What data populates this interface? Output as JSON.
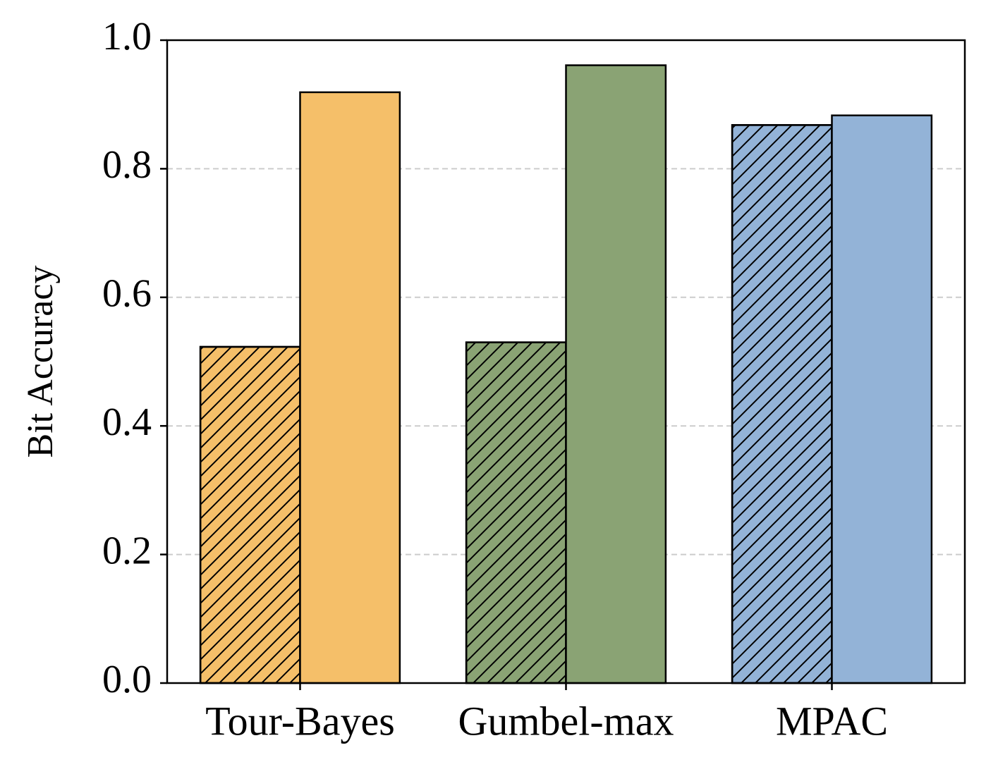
{
  "chart_data": {
    "type": "grouped_bar",
    "y_label": "Bit Accuracy",
    "categories": [
      "Tour-Bayes",
      "Gumbel-max",
      "MPAC"
    ],
    "colors": [
      "#f5bf69",
      "#8aa374",
      "#93b3d7"
    ],
    "series": [
      {
        "hatch": true,
        "values": [
          0.523,
          0.53,
          0.868
        ]
      },
      {
        "hatch": false,
        "values": [
          0.919,
          0.961,
          0.883
        ]
      }
    ],
    "ylim": [
      0,
      1
    ],
    "yticks": [
      {
        "value": 0,
        "label": "0.0"
      },
      {
        "value": 0.2,
        "label": "0.2"
      },
      {
        "value": 0.4,
        "label": "0.4"
      },
      {
        "value": 0.6,
        "label": "0.6"
      },
      {
        "value": 0.8,
        "label": "0.8"
      },
      {
        "value": 1,
        "label": "1.0"
      }
    ],
    "grid": true
  }
}
